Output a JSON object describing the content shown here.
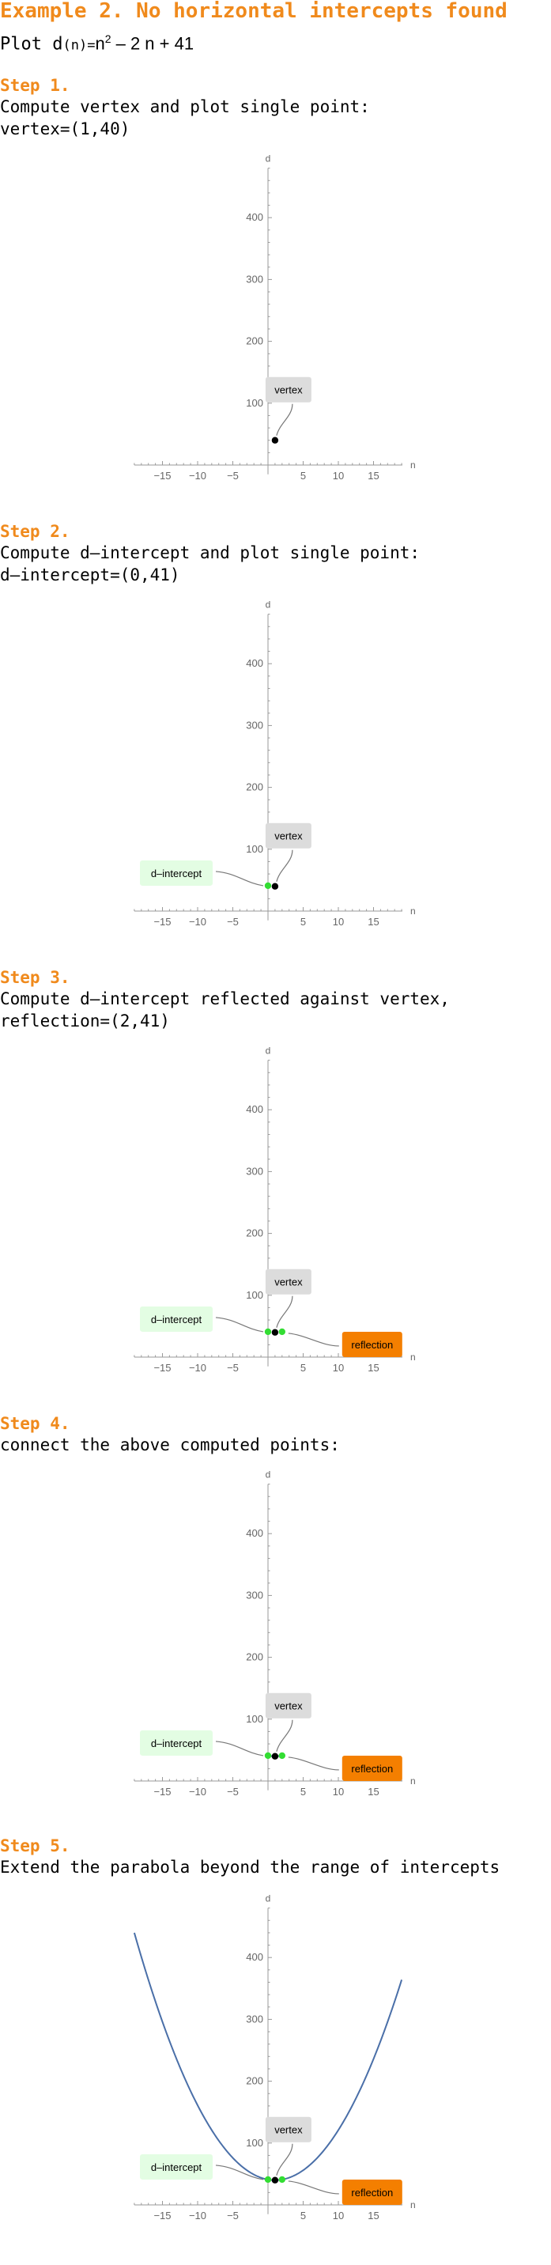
{
  "header": {
    "title": "Example 2. No horizontal intercepts found",
    "subtitle_prefix": "Plot d",
    "subtitle_paren": "(n)",
    "subtitle_eq": "=",
    "subtitle_n": "n",
    "subtitle_exp": "2",
    "subtitle_rest": " – 2 n + 41"
  },
  "steps": [
    {
      "heading": "Step 1.",
      "lines": [
        "Compute vertex and plot single point:",
        "vertex=(1,40)"
      ]
    },
    {
      "heading": "Step 2.",
      "lines": [
        "Compute d–intercept and plot single point:",
        "d–intercept=(0,41)"
      ]
    },
    {
      "heading": "Step 3.",
      "lines": [
        "Compute d–intercept reflected against vertex,",
        "reflection=(2,41)"
      ]
    },
    {
      "heading": "Step 4.",
      "lines": [
        "connect the above computed points:"
      ]
    },
    {
      "heading": "Step 5.",
      "lines": [
        "Extend the parabola beyond the range of intercepts"
      ]
    }
  ],
  "colors": {
    "accent": "#f08a1c",
    "vertex_point": "#000000",
    "intercept_point": "#33dd33",
    "curve": "#4a6fa8",
    "vertex_label_bg": "#dcdcdc",
    "intercept_label_bg": "#e3fde3",
    "reflection_label_bg": "#f47f00"
  },
  "chart_data": [
    {
      "type": "scatter",
      "xlabel": "n",
      "ylabel": "d",
      "xlim": [
        -19,
        20
      ],
      "ylim": [
        -15,
        480
      ],
      "xticks": [
        -15,
        -10,
        -5,
        5,
        10,
        15
      ],
      "yticks": [
        100,
        200,
        300,
        400
      ],
      "points": [
        {
          "x": 1,
          "y": 40,
          "kind": "vertex"
        }
      ],
      "labels": [
        {
          "text": "vertex",
          "for": "vertex"
        }
      ],
      "curve": null
    },
    {
      "type": "scatter",
      "xlabel": "n",
      "ylabel": "d",
      "xlim": [
        -19,
        20
      ],
      "ylim": [
        -15,
        480
      ],
      "xticks": [
        -15,
        -10,
        -5,
        5,
        10,
        15
      ],
      "yticks": [
        100,
        200,
        300,
        400
      ],
      "points": [
        {
          "x": 0,
          "y": 41,
          "kind": "intercept"
        },
        {
          "x": 1,
          "y": 40,
          "kind": "vertex"
        }
      ],
      "labels": [
        {
          "text": "vertex",
          "for": "vertex"
        },
        {
          "text": "d–intercept",
          "for": "intercept"
        }
      ],
      "curve": null
    },
    {
      "type": "scatter",
      "xlabel": "n",
      "ylabel": "d",
      "xlim": [
        -19,
        20
      ],
      "ylim": [
        -15,
        480
      ],
      "xticks": [
        -15,
        -10,
        -5,
        5,
        10,
        15
      ],
      "yticks": [
        100,
        200,
        300,
        400
      ],
      "points": [
        {
          "x": 0,
          "y": 41,
          "kind": "intercept"
        },
        {
          "x": 1,
          "y": 40,
          "kind": "vertex"
        },
        {
          "x": 2,
          "y": 41,
          "kind": "reflection"
        }
      ],
      "labels": [
        {
          "text": "vertex",
          "for": "vertex"
        },
        {
          "text": "d–intercept",
          "for": "intercept"
        },
        {
          "text": "reflection",
          "for": "reflection"
        }
      ],
      "curve": null
    },
    {
      "type": "line",
      "xlabel": "n",
      "ylabel": "d",
      "xlim": [
        -19,
        20
      ],
      "ylim": [
        -15,
        480
      ],
      "xticks": [
        -15,
        -10,
        -5,
        5,
        10,
        15
      ],
      "yticks": [
        100,
        200,
        300,
        400
      ],
      "points": [
        {
          "x": 0,
          "y": 41,
          "kind": "intercept"
        },
        {
          "x": 1,
          "y": 40,
          "kind": "vertex"
        },
        {
          "x": 2,
          "y": 41,
          "kind": "reflection"
        }
      ],
      "labels": [
        {
          "text": "vertex",
          "for": "vertex"
        },
        {
          "text": "d–intercept",
          "for": "intercept"
        },
        {
          "text": "reflection",
          "for": "reflection"
        }
      ],
      "curve": {
        "from": 0,
        "to": 2
      }
    },
    {
      "type": "line",
      "xlabel": "n",
      "ylabel": "d",
      "xlim": [
        -19,
        20
      ],
      "ylim": [
        -15,
        480
      ],
      "xticks": [
        -15,
        -10,
        -5,
        5,
        10,
        15
      ],
      "yticks": [
        100,
        200,
        300,
        400
      ],
      "points": [
        {
          "x": 0,
          "y": 41,
          "kind": "intercept"
        },
        {
          "x": 1,
          "y": 40,
          "kind": "vertex"
        },
        {
          "x": 2,
          "y": 41,
          "kind": "reflection"
        }
      ],
      "labels": [
        {
          "text": "vertex",
          "for": "vertex"
        },
        {
          "text": "d–intercept",
          "for": "intercept"
        },
        {
          "text": "reflection",
          "for": "reflection"
        }
      ],
      "curve": {
        "from": -19,
        "to": 19
      }
    }
  ]
}
